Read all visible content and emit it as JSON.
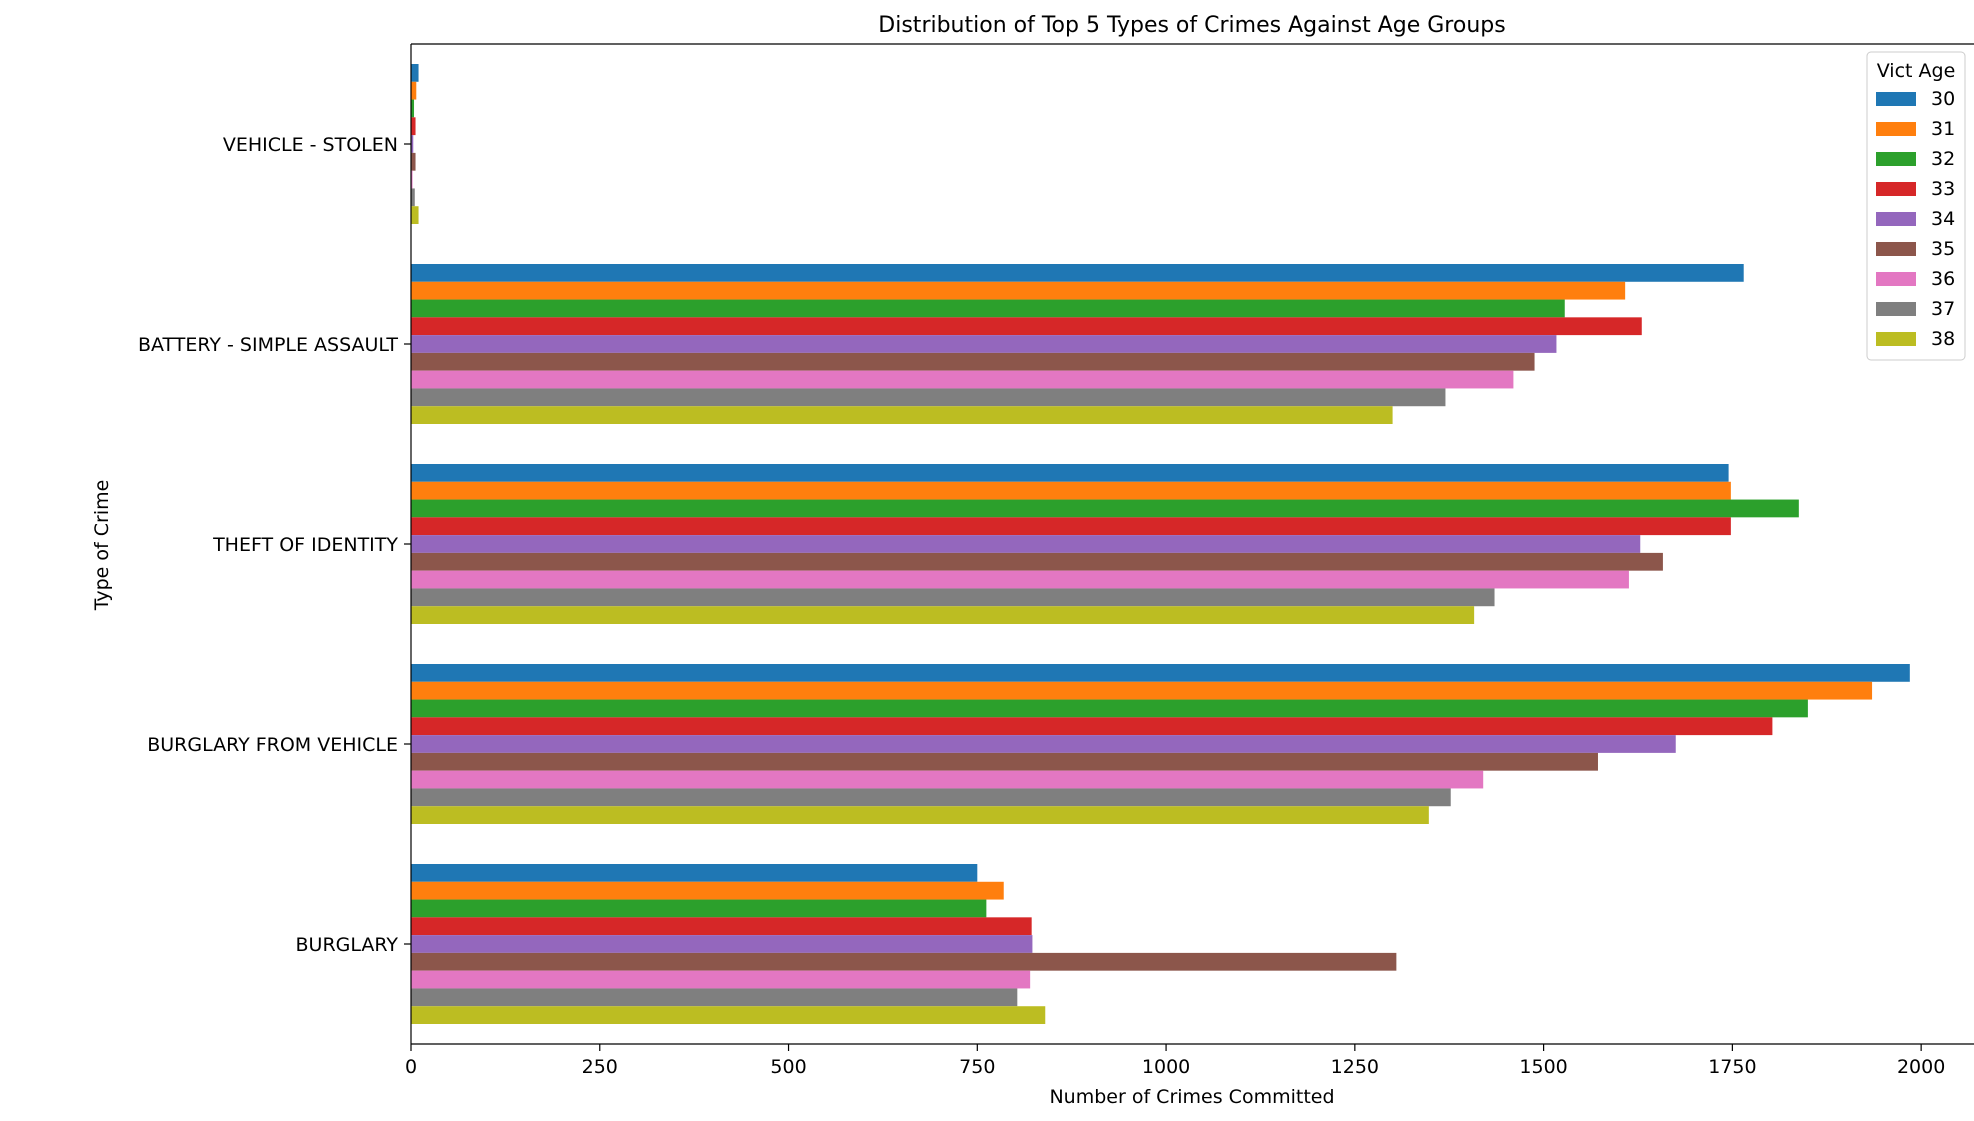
{
  "chart_data": {
    "type": "bar",
    "orientation": "horizontal",
    "title": "Distribution of Top 5 Types of Crimes Against Age Groups",
    "xlabel": "Number of Crimes Committed",
    "ylabel": "Type of Crime",
    "xlim": [
      0,
      2070
    ],
    "xticks": [
      0,
      250,
      500,
      750,
      1000,
      1250,
      1500,
      1750,
      2000
    ],
    "grid": false,
    "legend": {
      "title": "Vict Age",
      "position": "top-right"
    },
    "categories": [
      "VEHICLE - STOLEN",
      "BATTERY - SIMPLE ASSAULT",
      "THEFT OF IDENTITY",
      "BURGLARY FROM VEHICLE",
      "BURGLARY"
    ],
    "series": [
      {
        "name": "30",
        "color": "#1f77b4",
        "values": [
          10,
          1765,
          1745,
          1985,
          750
        ]
      },
      {
        "name": "31",
        "color": "#ff7f0e",
        "values": [
          7,
          1608,
          1748,
          1935,
          785
        ]
      },
      {
        "name": "32",
        "color": "#2ca02c",
        "values": [
          4,
          1528,
          1838,
          1850,
          762
        ]
      },
      {
        "name": "33",
        "color": "#d62728",
        "values": [
          6,
          1630,
          1748,
          1803,
          822
        ]
      },
      {
        "name": "34",
        "color": "#9467bd",
        "values": [
          3,
          1517,
          1628,
          1675,
          823
        ]
      },
      {
        "name": "35",
        "color": "#8c564b",
        "values": [
          6,
          1488,
          1658,
          1572,
          1305
        ]
      },
      {
        "name": "36",
        "color": "#e377c2",
        "values": [
          2,
          1460,
          1613,
          1420,
          820
        ]
      },
      {
        "name": "37",
        "color": "#7f7f7f",
        "values": [
          5,
          1370,
          1435,
          1377,
          803
        ]
      },
      {
        "name": "38",
        "color": "#bcbd22",
        "values": [
          10,
          1300,
          1408,
          1348,
          840
        ]
      }
    ]
  }
}
